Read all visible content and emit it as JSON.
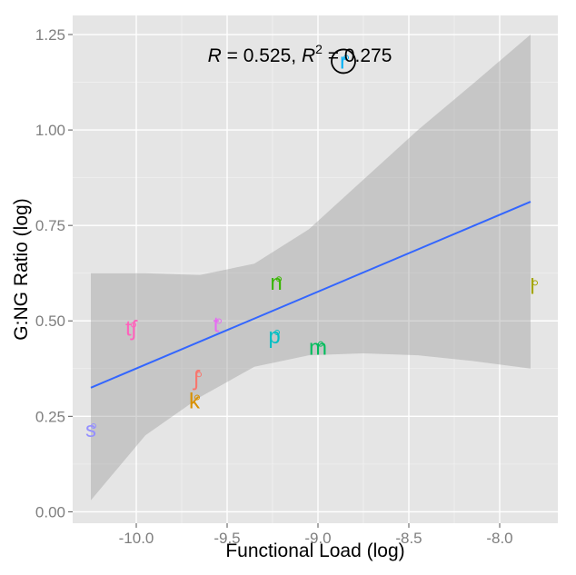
{
  "chart_data": {
    "type": "scatter",
    "title": "",
    "xlabel": "Functional Load (log)",
    "ylabel": "G:NG Ratio (log)",
    "xlim": [
      -10.35,
      -7.68
    ],
    "ylim": [
      -0.03,
      1.3
    ],
    "x_ticks": [
      {
        "value": -10.0,
        "label": "-10.0"
      },
      {
        "value": -9.5,
        "label": "-9.5"
      },
      {
        "value": -9.0,
        "label": "-9.0"
      },
      {
        "value": -8.5,
        "label": "-8.5"
      },
      {
        "value": -8.0,
        "label": "-8.0"
      }
    ],
    "y_ticks": [
      {
        "value": 0.0,
        "label": "0.00"
      },
      {
        "value": 0.25,
        "label": "0.25"
      },
      {
        "value": 0.5,
        "label": "0.50"
      },
      {
        "value": 0.75,
        "label": "0.75"
      },
      {
        "value": 1.0,
        "label": "1.00"
      },
      {
        "value": 1.25,
        "label": "1.25"
      }
    ],
    "grid": true,
    "points": [
      {
        "label": "s",
        "x": -10.25,
        "y": 0.215,
        "color": "#9590ff"
      },
      {
        "label": "tʃ",
        "x": -10.03,
        "y": 0.48,
        "color": "#ff62bc"
      },
      {
        "label": "ʃ",
        "x": -9.67,
        "y": 0.35,
        "color": "#f8766d"
      },
      {
        "label": "k",
        "x": -9.68,
        "y": 0.29,
        "color": "#d89000"
      },
      {
        "label": "t",
        "x": -9.56,
        "y": 0.49,
        "color": "#e76bf3"
      },
      {
        "label": "n",
        "x": -9.23,
        "y": 0.6,
        "color": "#39b600"
      },
      {
        "label": "p",
        "x": -9.24,
        "y": 0.46,
        "color": "#00bfc4"
      },
      {
        "label": "m",
        "x": -9.0,
        "y": 0.43,
        "color": "#00bd5c"
      },
      {
        "label": "r",
        "x": -8.86,
        "y": 1.18,
        "color": "#00b0f6",
        "circled": true
      },
      {
        "label": "l",
        "x": -7.82,
        "y": 0.59,
        "color": "#a3a500"
      }
    ],
    "regression": {
      "x": [
        -10.25,
        -7.83
      ],
      "y": [
        0.325,
        0.812
      ],
      "color": "#3366ff"
    },
    "confidence_band": {
      "x": [
        -10.25,
        -9.95,
        -9.65,
        -9.35,
        -9.05,
        -8.75,
        -8.45,
        -8.15,
        -7.83
      ],
      "upper": [
        0.625,
        0.625,
        0.62,
        0.65,
        0.74,
        0.87,
        1.0,
        1.12,
        1.25
      ],
      "lower": [
        0.03,
        0.2,
        0.3,
        0.38,
        0.41,
        0.415,
        0.41,
        0.395,
        0.375
      ],
      "color": "#999999"
    },
    "annotation": {
      "text_R": "R",
      "eq1": " = 0.525,  ",
      "text_R2": "R",
      "sup": "2",
      "eq2": " = 0.275"
    },
    "colors": {
      "panel": "#e5e5e5",
      "grid_major": "#ffffff",
      "grid_minor": "#f0f0f0",
      "band": "#999999",
      "line": "#3366ff"
    }
  }
}
